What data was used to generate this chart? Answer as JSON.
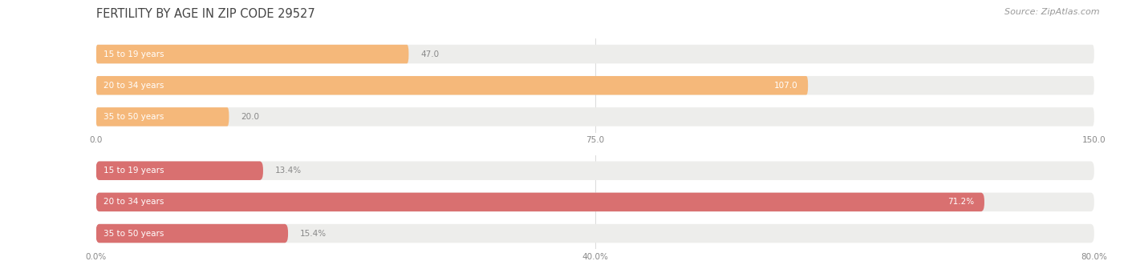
{
  "title": "FERTILITY BY AGE IN ZIP CODE 29527",
  "source": "Source: ZipAtlas.com",
  "chart1": {
    "categories": [
      "15 to 19 years",
      "20 to 34 years",
      "35 to 50 years"
    ],
    "values": [
      47.0,
      107.0,
      20.0
    ],
    "xlim": [
      0,
      150
    ],
    "xticks": [
      0.0,
      75.0,
      150.0
    ],
    "xtick_labels": [
      "0.0",
      "75.0",
      "150.0"
    ],
    "bar_color": "#F5B87A",
    "bar_bg_color": "#EDEDEB",
    "value_inside_color": "#ffffff",
    "value_outside_color": "#888888",
    "value_threshold_ratio": 0.6
  },
  "chart2": {
    "categories": [
      "15 to 19 years",
      "20 to 34 years",
      "35 to 50 years"
    ],
    "values": [
      13.4,
      71.2,
      15.4
    ],
    "xlim": [
      0,
      80
    ],
    "xticks": [
      0.0,
      40.0,
      80.0
    ],
    "xtick_labels": [
      "0.0%",
      "40.0%",
      "80.0%"
    ],
    "bar_color": "#D97070",
    "bar_bg_color": "#EDEDEB",
    "value_inside_color": "#ffffff",
    "value_outside_color": "#888888",
    "value_threshold_ratio": 0.6
  },
  "bg_color": "#ffffff",
  "title_color": "#444444",
  "title_fontsize": 10.5,
  "source_fontsize": 8,
  "category_fontsize": 7.5,
  "value_fontsize": 7.5,
  "bar_height": 0.6,
  "grid_color": "#dddddd",
  "tick_label_color": "#888888",
  "cat_label_color": "#ffffff"
}
